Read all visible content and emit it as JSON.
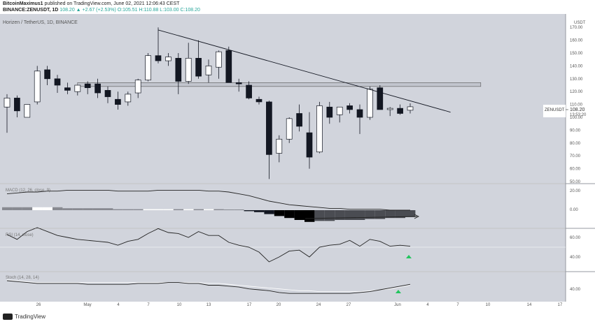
{
  "header": {
    "author": "BitcoinMaximus1",
    "published_text": "published on TradingView.com, June 02, 2021 12:06:43 CEST",
    "symbol_line": "BINANCE:ZENUSDT, 1D",
    "ohlc": "108.20 ▲ +2.67 (+2.53%) O:105.51 H:110.88 L:103.00 C:108.20"
  },
  "chart": {
    "title": "Horizen / TetherUS, 1D, BINANCE",
    "currency_line1": "USDT",
    "price_axis": [
      "170.00",
      "160.00",
      "150.00",
      "140.00",
      "130.00",
      "120.00",
      "110.00",
      "100.00",
      "90.00",
      "80.00",
      "70.00",
      "60.00",
      "50.00"
    ],
    "ticker_tag": "ZENUSDT",
    "last_price": "108.20",
    "countdown": "13:53:20",
    "x_labels": [
      "26",
      "May",
      "4",
      "7",
      "10",
      "13",
      "17",
      "20",
      "24",
      "27",
      "Jun",
      "4",
      "7",
      "10",
      "14",
      "17"
    ]
  },
  "indicators": {
    "macd": {
      "label": "MACD (12, 26, close, 9)",
      "axis": [
        "20.00",
        "0.00"
      ]
    },
    "rsi": {
      "label": "RSI (14, close)",
      "axis": [
        "60.00",
        "40.00"
      ]
    },
    "stoch": {
      "label": "Stoch (14, 28, 14)",
      "axis": [
        "40.00"
      ]
    }
  },
  "footer": {
    "brand": "TradingView"
  },
  "colors": {
    "background": "#d1d4dc",
    "bull": "#ffffff",
    "bear": "#131722",
    "signal": "#22c55e"
  },
  "chart_data": {
    "type": "candlestick",
    "title": "Horizen / TetherUS, 1D, BINANCE",
    "candles": [
      {
        "o": 108,
        "h": 118,
        "l": 88,
        "c": 115
      },
      {
        "o": 115,
        "h": 117,
        "l": 100,
        "c": 105
      },
      {
        "o": 100,
        "h": 110,
        "l": 100,
        "c": 110
      },
      {
        "o": 112,
        "h": 140,
        "l": 110,
        "c": 136
      },
      {
        "o": 137,
        "h": 140,
        "l": 125,
        "c": 130
      },
      {
        "o": 130,
        "h": 133,
        "l": 119,
        "c": 125
      },
      {
        "o": 123,
        "h": 127,
        "l": 118,
        "c": 121
      },
      {
        "o": 120,
        "h": 125,
        "l": 117,
        "c": 125
      },
      {
        "o": 126,
        "h": 128,
        "l": 118,
        "c": 123
      },
      {
        "o": 126,
        "h": 130,
        "l": 115,
        "c": 119
      },
      {
        "o": 121,
        "h": 124,
        "l": 111,
        "c": 116
      },
      {
        "o": 114,
        "h": 120,
        "l": 106,
        "c": 110
      },
      {
        "o": 112,
        "h": 120,
        "l": 109,
        "c": 118
      },
      {
        "o": 119,
        "h": 130,
        "l": 115,
        "c": 129
      },
      {
        "o": 129,
        "h": 150,
        "l": 128,
        "c": 148
      },
      {
        "o": 148,
        "h": 170,
        "l": 142,
        "c": 144
      },
      {
        "o": 144,
        "h": 150,
        "l": 140,
        "c": 147
      },
      {
        "o": 146,
        "h": 150,
        "l": 118,
        "c": 128
      },
      {
        "o": 128,
        "h": 158,
        "l": 126,
        "c": 146
      },
      {
        "o": 146,
        "h": 160,
        "l": 130,
        "c": 132
      },
      {
        "o": 133,
        "h": 145,
        "l": 127,
        "c": 140
      },
      {
        "o": 139,
        "h": 152,
        "l": 130,
        "c": 151
      },
      {
        "o": 152,
        "h": 155,
        "l": 127,
        "c": 127
      },
      {
        "o": 127,
        "h": 130,
        "l": 120,
        "c": 126
      },
      {
        "o": 125,
        "h": 128,
        "l": 114,
        "c": 115
      },
      {
        "o": 114,
        "h": 116,
        "l": 110,
        "c": 112
      },
      {
        "o": 112,
        "h": 113,
        "l": 52,
        "c": 71
      },
      {
        "o": 72,
        "h": 86,
        "l": 65,
        "c": 83
      },
      {
        "o": 83,
        "h": 100,
        "l": 80,
        "c": 99
      },
      {
        "o": 103,
        "h": 110,
        "l": 89,
        "c": 93
      },
      {
        "o": 88,
        "h": 104,
        "l": 60,
        "c": 69
      },
      {
        "o": 73,
        "h": 112,
        "l": 72,
        "c": 109
      },
      {
        "o": 108,
        "h": 112,
        "l": 95,
        "c": 100
      },
      {
        "o": 102,
        "h": 108,
        "l": 96,
        "c": 108
      },
      {
        "o": 109,
        "h": 111,
        "l": 103,
        "c": 106
      },
      {
        "o": 106,
        "h": 110,
        "l": 87,
        "c": 100
      },
      {
        "o": 100,
        "h": 124,
        "l": 98,
        "c": 122
      },
      {
        "o": 123,
        "h": 125,
        "l": 106,
        "c": 106
      },
      {
        "o": 106,
        "h": 108,
        "l": 101,
        "c": 107
      },
      {
        "o": 107,
        "h": 110,
        "l": 102,
        "c": 103
      },
      {
        "o": 105.51,
        "h": 110.88,
        "l": 103,
        "c": 108.2
      }
    ],
    "resistance_zone": [
      124,
      127
    ],
    "descending_trendline": [
      {
        "index": 15,
        "price": 168
      },
      {
        "index": 38,
        "price": 121
      },
      {
        "index": 44,
        "price": 104
      }
    ],
    "macd_histogram": [
      3,
      3,
      3,
      3,
      3,
      3,
      2,
      2,
      2,
      2,
      2,
      1,
      1,
      1,
      1,
      1,
      1,
      1,
      1,
      1,
      1,
      1,
      0,
      0,
      -1,
      -2,
      -4,
      -6,
      -8,
      -10,
      -12,
      -11,
      -11,
      -10,
      -10,
      -10,
      -9,
      -9,
      -8,
      -8,
      -7
    ],
    "macd_bull_indices": [
      3,
      4,
      14,
      15,
      16,
      18,
      20
    ],
    "macd_line": [
      18,
      19,
      20,
      20,
      21,
      21,
      22,
      22,
      22,
      22,
      22,
      21,
      21,
      21,
      21,
      22,
      22,
      22,
      22,
      22,
      21,
      21,
      20,
      18,
      16,
      13,
      10,
      8,
      6,
      5,
      4,
      3,
      2,
      2,
      1,
      1,
      1,
      1,
      0,
      0,
      0
    ],
    "rsi": [
      63,
      58,
      66,
      70,
      66,
      62,
      60,
      58,
      57,
      56,
      55,
      52,
      56,
      58,
      64,
      69,
      65,
      64,
      60,
      66,
      62,
      62,
      55,
      52,
      50,
      45,
      35,
      40,
      46,
      47,
      40,
      50,
      52,
      53,
      57,
      51,
      58,
      56,
      51,
      52,
      51
    ],
    "stoch_k": [
      50,
      49,
      48,
      47,
      47,
      47,
      47,
      47,
      46,
      46,
      46,
      46,
      46,
      47,
      47,
      47,
      48,
      48,
      47,
      47,
      45,
      45,
      44,
      43,
      41,
      40,
      39,
      37,
      36,
      36,
      36,
      36,
      36,
      36,
      36,
      37,
      38,
      40,
      42,
      44,
      46
    ],
    "stoch_d": [
      51,
      50,
      49,
      48,
      48,
      48,
      48,
      48,
      48,
      48,
      48,
      48,
      48,
      48,
      48,
      48,
      48,
      48,
      48,
      48,
      47,
      47,
      46,
      45,
      44,
      43,
      42,
      41,
      40,
      39,
      39,
      38,
      38,
      38,
      38,
      38,
      39,
      40,
      41,
      43,
      45
    ]
  }
}
